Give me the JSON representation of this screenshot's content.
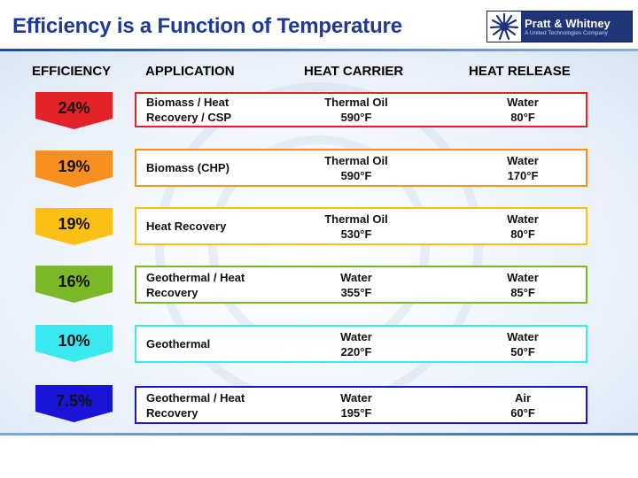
{
  "title": "Efficiency is a Function of Temperature",
  "logo": {
    "name": "Pratt & Whitney",
    "tagline": "A United Technologies Company"
  },
  "headers": {
    "efficiency": "EFFICIENCY",
    "application": "APPLICATION",
    "heat_carrier": "HEAT CARRIER",
    "heat_release": "HEAT RELEASE"
  },
  "rows": [
    {
      "efficiency": "24%",
      "color": "#e4222a",
      "application": [
        "Biomass / Heat",
        "Recovery / CSP"
      ],
      "carrier": [
        "Thermal Oil",
        "590°F"
      ],
      "release": [
        "Water",
        "80°F"
      ]
    },
    {
      "efficiency": "19%",
      "color": "#f7901e",
      "application": [
        "Biomass (CHP)"
      ],
      "carrier": [
        "Thermal Oil",
        "590°F"
      ],
      "release": [
        "Water",
        "170°F"
      ]
    },
    {
      "efficiency": "19%",
      "color": "#fcbf14",
      "application": [
        "Heat Recovery"
      ],
      "carrier": [
        "Thermal Oil",
        "530°F"
      ],
      "release": [
        "Water",
        "80°F"
      ]
    },
    {
      "efficiency": "16%",
      "color": "#7ab829",
      "application": [
        "Geothermal / Heat",
        "Recovery"
      ],
      "carrier": [
        "Water",
        "355°F"
      ],
      "release": [
        "Water",
        "85°F"
      ]
    },
    {
      "efficiency": "10%",
      "color": "#3ae8f0",
      "application": [
        "Geothermal"
      ],
      "carrier": [
        "Water",
        "220°F"
      ],
      "release": [
        "Water",
        "50°F"
      ]
    },
    {
      "efficiency": "7.5%",
      "color": "#1a14d6",
      "application": [
        "Geothermal / Heat",
        "Recovery"
      ],
      "carrier": [
        "Water",
        "195°F"
      ],
      "release": [
        "Air",
        "60°F"
      ]
    }
  ]
}
